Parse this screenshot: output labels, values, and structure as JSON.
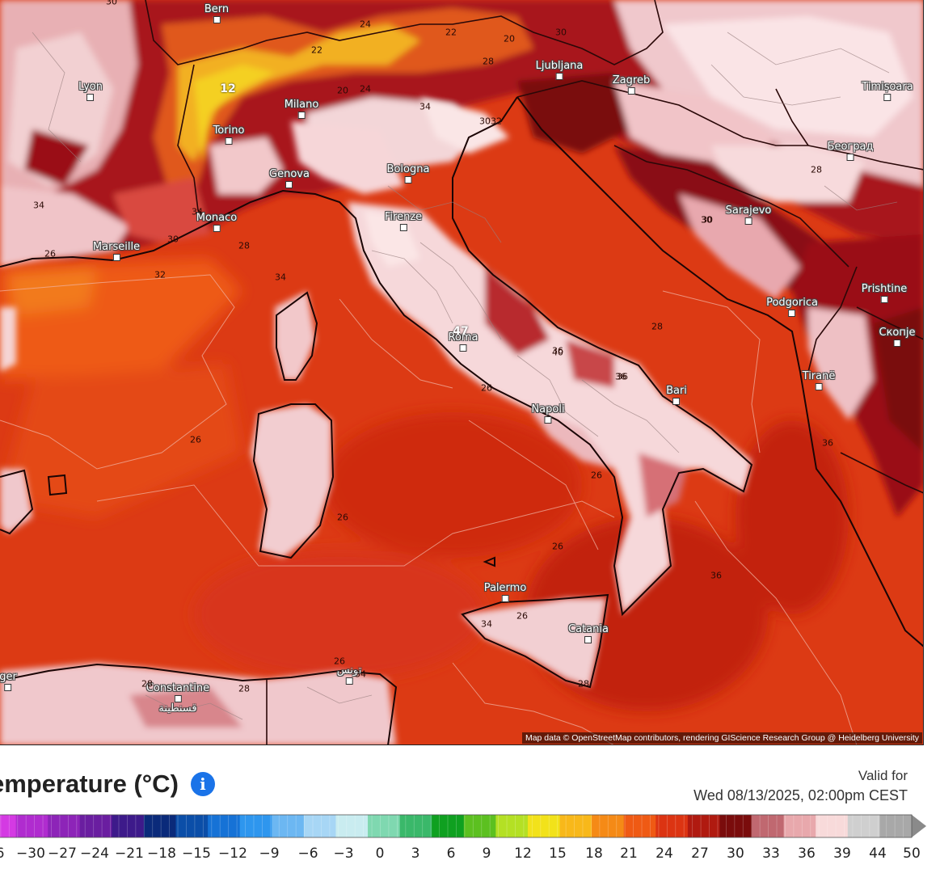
{
  "map": {
    "cities": [
      {
        "name": "Bern"
      },
      {
        "name": "Lyon"
      },
      {
        "name": "Milano"
      },
      {
        "name": "Torino"
      },
      {
        "name": "Genova"
      },
      {
        "name": "Monaco"
      },
      {
        "name": "Marseille"
      },
      {
        "name": "Bologna"
      },
      {
        "name": "Firenze"
      },
      {
        "name": "Roma"
      },
      {
        "name": "Napoli"
      },
      {
        "name": "Bari"
      },
      {
        "name": "Palermo"
      },
      {
        "name": "Catania"
      },
      {
        "name": "Ljubljana"
      },
      {
        "name": "Zagreb"
      },
      {
        "name": "Timișoara"
      },
      {
        "name": "Београд"
      },
      {
        "name": "Sarajevo"
      },
      {
        "name": "Podgorica"
      },
      {
        "name": "Prishtine"
      },
      {
        "name": "Скопје"
      },
      {
        "name": "Tiranë"
      },
      {
        "name": "Constantine\nقسنطينة"
      },
      {
        "name": "تونس"
      },
      {
        "name": "ger"
      }
    ],
    "contour_labels": [
      "30",
      "24",
      "22",
      "22",
      "20",
      "24",
      "20",
      "28",
      "30",
      "32",
      "34",
      "30",
      "34",
      "30",
      "34",
      "28",
      "26",
      "32",
      "34",
      "28",
      "26",
      "26",
      "26",
      "36",
      "36",
      "36",
      "26",
      "28",
      "26",
      "28",
      "28",
      "34",
      "36",
      "26",
      "26",
      "34",
      "30",
      "28",
      "30",
      "36",
      "40",
      "47",
      "12"
    ],
    "attribution": "Map data © OpenStreetMap contributors, rendering GIScience Research Group @ Heidelberg University"
  },
  "legend": {
    "title": "emperature (°C)",
    "info_icon": "i",
    "valid_label": "Valid for",
    "valid_time": "Wed 08/13/2025, 02:00pm CEST",
    "ticks": [
      "6",
      "−30",
      "−27",
      "−24",
      "−21",
      "−18",
      "−15",
      "−12",
      "−9",
      "−6",
      "−3",
      "0",
      "3",
      "6",
      "9",
      "12",
      "15",
      "18",
      "21",
      "24",
      "27",
      "30",
      "33",
      "36",
      "39",
      "44",
      "50"
    ],
    "colors": [
      "#d43ae3",
      "#b02ccf",
      "#8d24b8",
      "#6a1ea0",
      "#3d1a8a",
      "#0a2a7a",
      "#0b4ea8",
      "#1672d6",
      "#2e96ee",
      "#6cb7f2",
      "#a7d6f5",
      "#c9ecf0",
      "#7fd8b0",
      "#3ab86a",
      "#0fa020",
      "#5cc020",
      "#b4e024",
      "#f2e21a",
      "#f8b81a",
      "#f58a16",
      "#ef5a14",
      "#dc3412",
      "#b01a10",
      "#7a0c0c",
      "#c06870",
      "#e8a8ac",
      "#f8dada",
      "#cfcfcf",
      "#a8a8a8"
    ]
  }
}
